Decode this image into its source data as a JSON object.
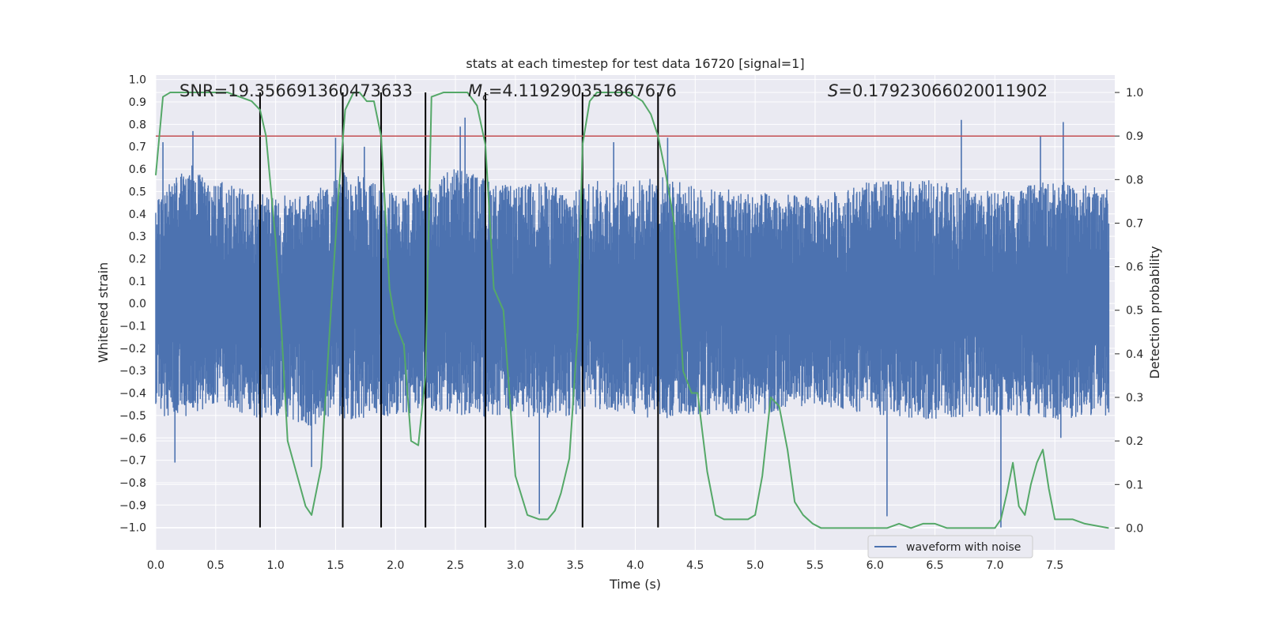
{
  "chart_data": {
    "type": "line",
    "title": "stats at each timestep for test data 16720 [signal=1]",
    "xlabel": "Time (s)",
    "ylabel": "Whitened strain",
    "y2label": "Detection probability",
    "xlim": [
      0.0,
      8.0
    ],
    "ylim": [
      -1.1,
      1.02
    ],
    "y2lim": [
      -0.05,
      1.04
    ],
    "x_ticks": [
      "0.0",
      "0.5",
      "1.0",
      "1.5",
      "2.0",
      "2.5",
      "3.0",
      "3.5",
      "4.0",
      "4.5",
      "5.0",
      "5.5",
      "6.0",
      "6.5",
      "7.0",
      "7.5"
    ],
    "y_ticks": [
      "1.0",
      "0.9",
      "0.8",
      "0.7",
      "0.6",
      "0.5",
      "0.4",
      "0.3",
      "0.2",
      "0.1",
      "0.0",
      "−0.1",
      "−0.2",
      "−0.3",
      "−0.4",
      "−0.5",
      "−0.6",
      "−0.7",
      "−0.8",
      "−0.9",
      "−1.0"
    ],
    "y2_ticks": [
      "1.0",
      "0.9",
      "0.8",
      "0.7",
      "0.6",
      "0.5",
      "0.4",
      "0.3",
      "0.2",
      "0.1",
      "0.0"
    ],
    "grid": true,
    "legend": {
      "position": "bottom-right",
      "entries": [
        "waveform with noise"
      ]
    },
    "annotations": {
      "snr": "SNR=19.356691360473633",
      "mc_symbol": "M",
      "mc_sub": "c",
      "mc_value": "=4.119290351867676",
      "s_symbol": "S",
      "s_value": "=0.17923066020011902"
    },
    "threshold_probability": 0.9,
    "vertical_markers": [
      0.87,
      1.56,
      1.88,
      2.25,
      2.75,
      3.56,
      4.19
    ],
    "series": [
      {
        "name": "waveform with noise",
        "axis": "left",
        "color": "#4c72b0",
        "envelope": {
          "x": [
            0.0,
            0.1,
            0.3,
            0.5,
            0.9,
            1.0,
            1.3,
            1.5,
            1.6,
            2.0,
            2.3,
            2.5,
            2.8,
            3.0,
            3.2,
            3.5,
            3.6,
            4.0,
            4.2,
            4.5,
            5.0,
            5.5,
            6.0,
            6.5,
            7.0,
            7.5,
            7.95
          ],
          "upper": [
            0.45,
            0.55,
            0.62,
            0.55,
            0.5,
            0.48,
            0.5,
            0.55,
            0.6,
            0.5,
            0.55,
            0.62,
            0.55,
            0.52,
            0.55,
            0.5,
            0.55,
            0.55,
            0.58,
            0.52,
            0.5,
            0.48,
            0.55,
            0.55,
            0.5,
            0.55,
            0.52
          ],
          "lower": [
            -0.48,
            -0.52,
            -0.5,
            -0.45,
            -0.52,
            -0.5,
            -0.55,
            -0.5,
            -0.52,
            -0.5,
            -0.48,
            -0.5,
            -0.52,
            -0.5,
            -0.52,
            -0.5,
            -0.48,
            -0.5,
            -0.52,
            -0.5,
            -0.5,
            -0.45,
            -0.5,
            -0.52,
            -0.5,
            -0.52,
            -0.5
          ]
        },
        "spikes_up": [
          [
            0.06,
            0.72
          ],
          [
            0.31,
            0.77
          ],
          [
            1.5,
            0.74
          ],
          [
            1.74,
            0.7
          ],
          [
            2.54,
            0.79
          ],
          [
            2.58,
            0.83
          ],
          [
            3.82,
            0.72
          ],
          [
            4.27,
            0.74
          ],
          [
            6.72,
            0.82
          ],
          [
            7.38,
            0.75
          ],
          [
            7.57,
            0.81
          ]
        ],
        "spikes_down": [
          [
            0.16,
            -0.71
          ],
          [
            1.3,
            -0.73
          ],
          [
            2.25,
            -0.63
          ],
          [
            3.2,
            -0.94
          ],
          [
            6.1,
            -0.95
          ],
          [
            7.05,
            -1.0
          ],
          [
            7.55,
            -0.6
          ]
        ]
      },
      {
        "name": "",
        "axis": "right",
        "color": "#55a868",
        "x": [
          0.0,
          0.06,
          0.12,
          0.2,
          0.4,
          0.6,
          0.7,
          0.8,
          0.87,
          0.92,
          1.0,
          1.05,
          1.1,
          1.18,
          1.25,
          1.3,
          1.38,
          1.45,
          1.52,
          1.58,
          1.65,
          1.7,
          1.76,
          1.82,
          1.88,
          1.95,
          2.0,
          2.07,
          2.13,
          2.19,
          2.25,
          2.3,
          2.4,
          2.5,
          2.6,
          2.68,
          2.75,
          2.82,
          2.9,
          3.0,
          3.1,
          3.2,
          3.27,
          3.33,
          3.38,
          3.45,
          3.52,
          3.56,
          3.62,
          3.68,
          3.78,
          3.95,
          4.06,
          4.13,
          4.19,
          4.25,
          4.32,
          4.4,
          4.47,
          4.52,
          4.6,
          4.67,
          4.74,
          4.8,
          4.87,
          4.94,
          5.0,
          5.06,
          5.13,
          5.2,
          5.27,
          5.33,
          5.4,
          5.48,
          5.55,
          5.65,
          5.8,
          6.0,
          6.1,
          6.2,
          6.3,
          6.4,
          6.5,
          6.6,
          6.8,
          7.0,
          7.05,
          7.1,
          7.15,
          7.2,
          7.25,
          7.3,
          7.35,
          7.4,
          7.45,
          7.5,
          7.58,
          7.65,
          7.75,
          7.95
        ],
        "y": [
          0.81,
          0.99,
          1.0,
          1.0,
          1.0,
          1.0,
          0.99,
          0.98,
          0.96,
          0.9,
          0.66,
          0.45,
          0.2,
          0.12,
          0.05,
          0.03,
          0.14,
          0.45,
          0.75,
          0.96,
          1.0,
          1.0,
          0.98,
          0.98,
          0.9,
          0.55,
          0.47,
          0.42,
          0.2,
          0.19,
          0.35,
          0.99,
          1.0,
          1.0,
          1.0,
          0.97,
          0.88,
          0.55,
          0.5,
          0.12,
          0.03,
          0.02,
          0.02,
          0.04,
          0.08,
          0.16,
          0.45,
          0.88,
          0.98,
          1.0,
          1.0,
          1.0,
          0.98,
          0.95,
          0.9,
          0.82,
          0.71,
          0.36,
          0.31,
          0.31,
          0.13,
          0.03,
          0.02,
          0.02,
          0.02,
          0.02,
          0.03,
          0.12,
          0.3,
          0.28,
          0.18,
          0.06,
          0.03,
          0.01,
          0.0,
          0.0,
          0.0,
          0.0,
          0.0,
          0.01,
          0.0,
          0.01,
          0.01,
          0.0,
          0.0,
          0.0,
          0.02,
          0.08,
          0.15,
          0.05,
          0.03,
          0.1,
          0.15,
          0.18,
          0.09,
          0.02,
          0.02,
          0.02,
          0.01,
          0.0
        ]
      }
    ]
  }
}
